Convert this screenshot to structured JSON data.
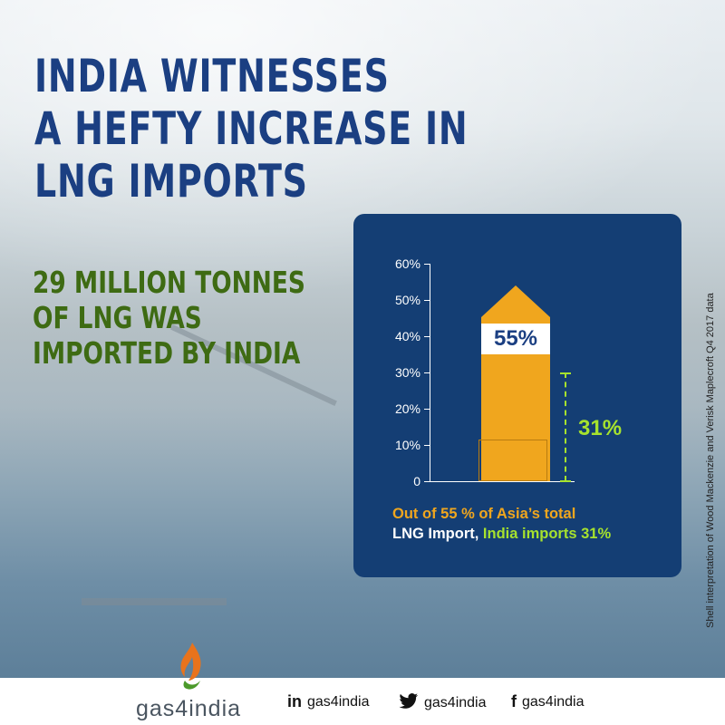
{
  "title": "INDIA WITNESSES A HEFTY INCREASE IN LNG IMPORTS",
  "title_lines": [
    "INDIA WITNESSES",
    "A HEFTY INCREASE IN",
    "LNG IMPORTS"
  ],
  "subtitle_lines": [
    "29 MILLION TONNES",
    "OF LNG WAS",
    "IMPORTED BY INDIA"
  ],
  "chart_data": {
    "type": "bar",
    "categories": [
      ""
    ],
    "series": [
      {
        "values": [
          55
        ],
        "label": "55%"
      },
      {
        "values": [
          31
        ],
        "label": "31%"
      }
    ],
    "y_ticks": [
      "0",
      "10%",
      "20%",
      "30%",
      "40%",
      "50%",
      "60%"
    ],
    "ylim": [
      0,
      60
    ],
    "grid": false,
    "caption_parts": [
      "Out of 55 % of Asia’s total",
      "LNG Import, ",
      "India imports 31%"
    ]
  },
  "source_note": "Shell interpretation of Wood Mackenzie and Verisk Maplecroft Q4 2017 data",
  "footer": {
    "brand": "gas4india",
    "socials": [
      {
        "icon": "linkedin-icon",
        "glyph": "in",
        "handle": "gas4india"
      },
      {
        "icon": "twitter-icon",
        "glyph": "🐦",
        "handle": "gas4india"
      },
      {
        "icon": "facebook-icon",
        "glyph": "f",
        "handle": "gas4india"
      }
    ]
  },
  "colors": {
    "title": "#1b3f82",
    "subtitle": "#3e6b13",
    "panel": "#143e74",
    "bar": "#f0a61e",
    "accent_green": "#a6e22e"
  }
}
